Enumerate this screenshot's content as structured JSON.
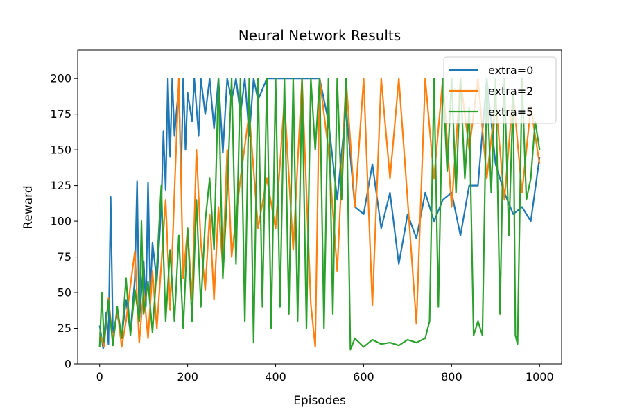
{
  "chart_data": {
    "type": "line",
    "title": "Neural Network Results",
    "xlabel": "Episodes",
    "ylabel": "Reward",
    "xlim": [
      -50,
      1050
    ],
    "ylim": [
      0,
      220
    ],
    "xticks": [
      0,
      200,
      400,
      600,
      800,
      1000
    ],
    "yticks": [
      0,
      25,
      50,
      75,
      100,
      125,
      150,
      175,
      200
    ],
    "grid": false,
    "legend_position": "top-right",
    "series": [
      {
        "name": "extra=0",
        "color": "#1f77b4",
        "points": [
          [
            0,
            27
          ],
          [
            8,
            11
          ],
          [
            15,
            36
          ],
          [
            20,
            14
          ],
          [
            25,
            117
          ],
          [
            30,
            22
          ],
          [
            40,
            35
          ],
          [
            50,
            18
          ],
          [
            60,
            45
          ],
          [
            70,
            22
          ],
          [
            80,
            60
          ],
          [
            85,
            128
          ],
          [
            90,
            30
          ],
          [
            100,
            72
          ],
          [
            105,
            40
          ],
          [
            110,
            127
          ],
          [
            115,
            50
          ],
          [
            120,
            85
          ],
          [
            130,
            58
          ],
          [
            140,
            110
          ],
          [
            145,
            163
          ],
          [
            150,
            122
          ],
          [
            155,
            200
          ],
          [
            160,
            145
          ],
          [
            165,
            200
          ],
          [
            170,
            160
          ],
          [
            180,
            195
          ],
          [
            185,
            130
          ],
          [
            190,
            200
          ],
          [
            195,
            150
          ],
          [
            200,
            190
          ],
          [
            210,
            170
          ],
          [
            215,
            200
          ],
          [
            225,
            160
          ],
          [
            230,
            200
          ],
          [
            240,
            175
          ],
          [
            250,
            200
          ],
          [
            260,
            165
          ],
          [
            270,
            200
          ],
          [
            280,
            148
          ],
          [
            290,
            200
          ],
          [
            300,
            185
          ],
          [
            310,
            200
          ],
          [
            320,
            175
          ],
          [
            330,
            200
          ],
          [
            340,
            160
          ],
          [
            350,
            200
          ],
          [
            360,
            185
          ],
          [
            380,
            200
          ],
          [
            400,
            200
          ],
          [
            450,
            200
          ],
          [
            500,
            200
          ],
          [
            520,
            170
          ],
          [
            540,
            115
          ],
          [
            560,
            180
          ],
          [
            580,
            110
          ],
          [
            600,
            105
          ],
          [
            620,
            140
          ],
          [
            640,
            95
          ],
          [
            660,
            120
          ],
          [
            680,
            70
          ],
          [
            700,
            105
          ],
          [
            720,
            88
          ],
          [
            740,
            120
          ],
          [
            760,
            100
          ],
          [
            780,
            115
          ],
          [
            800,
            120
          ],
          [
            820,
            90
          ],
          [
            840,
            125
          ],
          [
            860,
            125
          ],
          [
            880,
            200
          ],
          [
            900,
            140
          ],
          [
            920,
            120
          ],
          [
            940,
            105
          ],
          [
            960,
            110
          ],
          [
            980,
            100
          ],
          [
            1000,
            145
          ]
        ]
      },
      {
        "name": "extra=2",
        "color": "#ff7f0e",
        "points": [
          [
            0,
            22
          ],
          [
            10,
            12
          ],
          [
            20,
            46
          ],
          [
            30,
            16
          ],
          [
            40,
            38
          ],
          [
            50,
            12
          ],
          [
            60,
            30
          ],
          [
            70,
            55
          ],
          [
            80,
            79
          ],
          [
            90,
            15
          ],
          [
            100,
            52
          ],
          [
            110,
            18
          ],
          [
            120,
            65
          ],
          [
            130,
            25
          ],
          [
            140,
            70
          ],
          [
            150,
            115
          ],
          [
            160,
            38
          ],
          [
            170,
            120
          ],
          [
            180,
            200
          ],
          [
            190,
            60
          ],
          [
            200,
            95
          ],
          [
            210,
            45
          ],
          [
            220,
            150
          ],
          [
            230,
            85
          ],
          [
            240,
            52
          ],
          [
            250,
            105
          ],
          [
            260,
            45
          ],
          [
            270,
            110
          ],
          [
            280,
            68
          ],
          [
            290,
            150
          ],
          [
            300,
            75
          ],
          [
            320,
            130
          ],
          [
            340,
            176
          ],
          [
            360,
            95
          ],
          [
            380,
            130
          ],
          [
            400,
            95
          ],
          [
            420,
            185
          ],
          [
            440,
            80
          ],
          [
            460,
            200
          ],
          [
            480,
            42
          ],
          [
            490,
            12
          ],
          [
            500,
            200
          ],
          [
            520,
            150
          ],
          [
            540,
            65
          ],
          [
            560,
            200
          ],
          [
            580,
            110
          ],
          [
            600,
            200
          ],
          [
            620,
            41
          ],
          [
            640,
            200
          ],
          [
            660,
            130
          ],
          [
            680,
            200
          ],
          [
            700,
            115
          ],
          [
            720,
            28
          ],
          [
            740,
            200
          ],
          [
            760,
            130
          ],
          [
            780,
            200
          ],
          [
            800,
            110
          ],
          [
            820,
            200
          ],
          [
            840,
            150
          ],
          [
            860,
            200
          ],
          [
            880,
            130
          ],
          [
            900,
            185
          ],
          [
            920,
            115
          ],
          [
            940,
            190
          ],
          [
            960,
            120
          ],
          [
            980,
            180
          ],
          [
            1000,
            140
          ]
        ]
      },
      {
        "name": "extra=5",
        "color": "#2ca02c",
        "points": [
          [
            0,
            12
          ],
          [
            5,
            50
          ],
          [
            10,
            15
          ],
          [
            20,
            45
          ],
          [
            30,
            13
          ],
          [
            40,
            40
          ],
          [
            50,
            18
          ],
          [
            60,
            60
          ],
          [
            70,
            20
          ],
          [
            80,
            52
          ],
          [
            90,
            30
          ],
          [
            95,
            100
          ],
          [
            100,
            35
          ],
          [
            110,
            58
          ],
          [
            120,
            22
          ],
          [
            130,
            68
          ],
          [
            140,
            125
          ],
          [
            150,
            30
          ],
          [
            160,
            80
          ],
          [
            170,
            30
          ],
          [
            180,
            90
          ],
          [
            190,
            25
          ],
          [
            200,
            95
          ],
          [
            210,
            30
          ],
          [
            220,
            115
          ],
          [
            230,
            40
          ],
          [
            240,
            100
          ],
          [
            250,
            130
          ],
          [
            260,
            80
          ],
          [
            270,
            200
          ],
          [
            280,
            60
          ],
          [
            290,
            120
          ],
          [
            300,
            200
          ],
          [
            310,
            70
          ],
          [
            320,
            200
          ],
          [
            330,
            30
          ],
          [
            340,
            200
          ],
          [
            350,
            15
          ],
          [
            360,
            200
          ],
          [
            370,
            40
          ],
          [
            380,
            200
          ],
          [
            390,
            25
          ],
          [
            400,
            200
          ],
          [
            410,
            40
          ],
          [
            420,
            200
          ],
          [
            430,
            35
          ],
          [
            440,
            200
          ],
          [
            450,
            30
          ],
          [
            460,
            200
          ],
          [
            470,
            25
          ],
          [
            480,
            200
          ],
          [
            490,
            150
          ],
          [
            500,
            200
          ],
          [
            510,
            25
          ],
          [
            520,
            200
          ],
          [
            530,
            35
          ],
          [
            540,
            200
          ],
          [
            550,
            115
          ],
          [
            560,
            200
          ],
          [
            570,
            10
          ],
          [
            580,
            18
          ],
          [
            600,
            12
          ],
          [
            620,
            17
          ],
          [
            640,
            14
          ],
          [
            660,
            15
          ],
          [
            680,
            13
          ],
          [
            700,
            17
          ],
          [
            720,
            15
          ],
          [
            740,
            18
          ],
          [
            750,
            30
          ],
          [
            760,
            200
          ],
          [
            770,
            40
          ],
          [
            780,
            200
          ],
          [
            790,
            135
          ],
          [
            800,
            200
          ],
          [
            810,
            120
          ],
          [
            820,
            200
          ],
          [
            830,
            130
          ],
          [
            840,
            180
          ],
          [
            850,
            20
          ],
          [
            860,
            30
          ],
          [
            870,
            20
          ],
          [
            880,
            200
          ],
          [
            890,
            120
          ],
          [
            900,
            200
          ],
          [
            910,
            35
          ],
          [
            920,
            200
          ],
          [
            930,
            90
          ],
          [
            940,
            190
          ],
          [
            945,
            20
          ],
          [
            950,
            14
          ],
          [
            960,
            200
          ],
          [
            970,
            115
          ],
          [
            980,
            130
          ],
          [
            990,
            170
          ],
          [
            1000,
            150
          ]
        ]
      }
    ]
  }
}
